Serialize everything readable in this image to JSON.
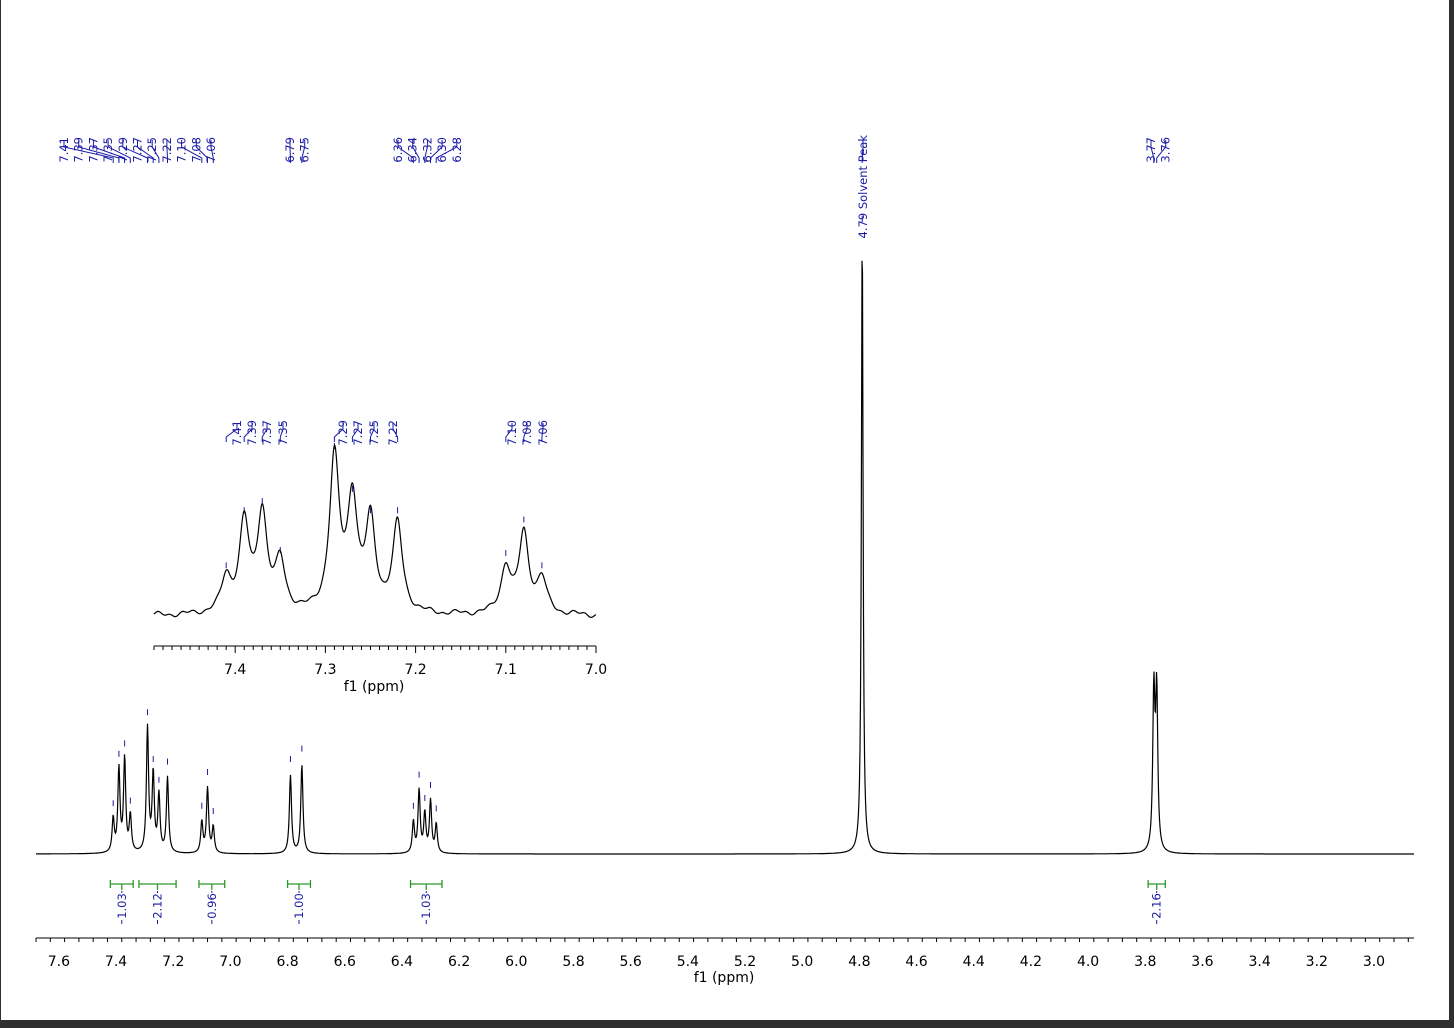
{
  "chart_data": [
    {
      "type": "line",
      "xlabel": "f1 (ppm)",
      "xlim": [
        7.68,
        2.86
      ],
      "x_reversed": true,
      "x_ticks": [
        "7.6",
        "7.4",
        "7.2",
        "7.0",
        "6.8",
        "6.6",
        "6.4",
        "6.2",
        "6.0",
        "5.8",
        "5.6",
        "5.4",
        "5.2",
        "5.0",
        "4.8",
        "4.6",
        "4.4",
        "4.2",
        "4.0",
        "3.8",
        "3.6",
        "3.4",
        "3.2",
        "3.0"
      ],
      "peak_groups": [
        [
          "7.41",
          "7.39",
          "7.37",
          "7.35",
          "7.29",
          "7.27",
          "7.25",
          "7.22",
          "7.10",
          "7.08",
          "7.06"
        ],
        [
          "6.79",
          "6.75"
        ],
        [
          "6.36",
          "6.34",
          "6.32",
          "6.30",
          "6.28"
        ],
        [
          "4.79 Solvent Peak"
        ],
        [
          "3.77",
          "3.76"
        ]
      ],
      "integrals": [
        {
          "from": 7.42,
          "to": 7.34,
          "value": "1.03"
        },
        {
          "from": 7.32,
          "to": 7.19,
          "value": "2.12"
        },
        {
          "from": 7.11,
          "to": 7.02,
          "value": "0.96"
        },
        {
          "from": 6.8,
          "to": 6.72,
          "value": "1.00"
        },
        {
          "from": 6.37,
          "to": 6.26,
          "value": "1.03"
        },
        {
          "from": 3.79,
          "to": 3.73,
          "value": "2.16"
        }
      ],
      "peaks": [
        {
          "ppm": 7.41,
          "height": 0.13
        },
        {
          "ppm": 7.39,
          "height": 0.32
        },
        {
          "ppm": 7.37,
          "height": 0.36
        },
        {
          "ppm": 7.35,
          "height": 0.14
        },
        {
          "ppm": 7.29,
          "height": 0.48
        },
        {
          "ppm": 7.27,
          "height": 0.3
        },
        {
          "ppm": 7.25,
          "height": 0.22
        },
        {
          "ppm": 7.22,
          "height": 0.29
        },
        {
          "ppm": 7.1,
          "height": 0.12
        },
        {
          "ppm": 7.08,
          "height": 0.25
        },
        {
          "ppm": 7.06,
          "height": 0.1
        },
        {
          "ppm": 6.79,
          "height": 0.3
        },
        {
          "ppm": 6.75,
          "height": 0.34
        },
        {
          "ppm": 6.36,
          "height": 0.12
        },
        {
          "ppm": 6.34,
          "height": 0.24
        },
        {
          "ppm": 6.32,
          "height": 0.15
        },
        {
          "ppm": 6.3,
          "height": 0.2
        },
        {
          "ppm": 6.28,
          "height": 0.11
        },
        {
          "ppm": 4.79,
          "height": 2.4
        },
        {
          "ppm": 3.77,
          "height": 0.6
        },
        {
          "ppm": 3.76,
          "height": 0.6
        }
      ]
    },
    {
      "type": "line",
      "inset": true,
      "xlabel": "f1 (ppm)",
      "xlim": [
        7.49,
        7.0
      ],
      "x_reversed": true,
      "x_ticks": [
        "7.4",
        "7.3",
        "7.2",
        "7.1",
        "7.0"
      ],
      "peak_labels": [
        "7.41",
        "7.39",
        "7.37",
        "7.35",
        "7.29",
        "7.27",
        "7.25",
        "7.22",
        "7.10",
        "7.08",
        "7.06"
      ],
      "peaks": [
        {
          "ppm": 7.41,
          "height": 0.22
        },
        {
          "ppm": 7.39,
          "height": 0.58
        },
        {
          "ppm": 7.37,
          "height": 0.64
        },
        {
          "ppm": 7.35,
          "height": 0.32
        },
        {
          "ppm": 7.29,
          "height": 1.0
        },
        {
          "ppm": 7.27,
          "height": 0.72
        },
        {
          "ppm": 7.25,
          "height": 0.58
        },
        {
          "ppm": 7.22,
          "height": 0.58
        },
        {
          "ppm": 7.1,
          "height": 0.3
        },
        {
          "ppm": 7.08,
          "height": 0.52
        },
        {
          "ppm": 7.06,
          "height": 0.22
        }
      ]
    }
  ]
}
